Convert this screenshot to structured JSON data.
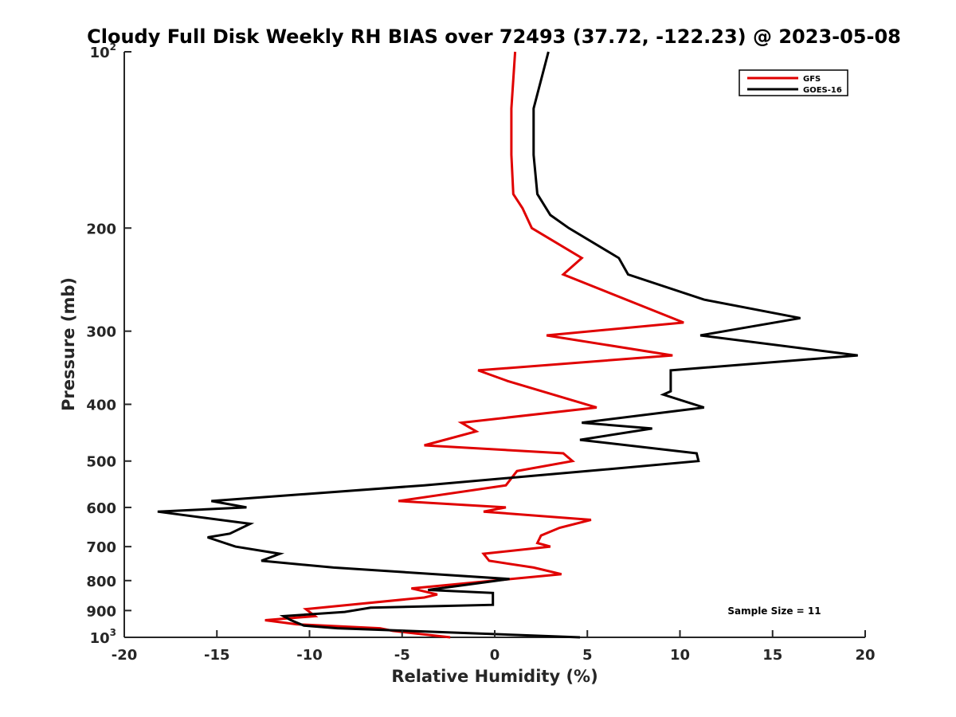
{
  "chart_data": {
    "type": "line",
    "title": "Cloudy Full Disk Weekly RH BIAS over 72493 (37.72, -122.23) @ 2023-05-08",
    "xlabel": "Relative Humidity (%)",
    "ylabel": "Pressure (mb)",
    "xlim": [
      -20,
      20
    ],
    "ylim": [
      100,
      1000
    ],
    "y_scale": "log",
    "y_reversed": true,
    "x_ticks": [
      "-20",
      "-15",
      "-10",
      "-5",
      "0",
      "5",
      "10",
      "15",
      "20"
    ],
    "y_ticks": [
      {
        "value": 100,
        "base": "10",
        "exp": "2"
      },
      {
        "value": 200,
        "label": "200"
      },
      {
        "value": 300,
        "label": "300"
      },
      {
        "value": 400,
        "label": "400"
      },
      {
        "value": 500,
        "label": "500"
      },
      {
        "value": 600,
        "label": "600"
      },
      {
        "value": 700,
        "label": "700"
      },
      {
        "value": 800,
        "label": "800"
      },
      {
        "value": 900,
        "label": "900"
      },
      {
        "value": 1000,
        "base": "10",
        "exp": "3"
      }
    ],
    "legend_position": "top-right",
    "annotation": "Sample Size = 11",
    "grid": false,
    "series": [
      {
        "name": "GFS",
        "color": "#e00000",
        "points": [
          [
            1.1,
            100
          ],
          [
            0.9,
            125
          ],
          [
            0.9,
            150
          ],
          [
            1.0,
            175
          ],
          [
            1.5,
            185
          ],
          [
            2.0,
            200
          ],
          [
            4.7,
            225
          ],
          [
            3.7,
            240
          ],
          [
            10.2,
            290
          ],
          [
            2.8,
            305
          ],
          [
            9.6,
            330
          ],
          [
            -0.9,
            350
          ],
          [
            0.7,
            365
          ],
          [
            5.5,
            405
          ],
          [
            -1.8,
            430
          ],
          [
            -1.0,
            445
          ],
          [
            -3.8,
            470
          ],
          [
            3.7,
            485
          ],
          [
            4.2,
            500
          ],
          [
            1.2,
            520
          ],
          [
            0.6,
            550
          ],
          [
            -5.2,
            585
          ],
          [
            0.6,
            600
          ],
          [
            -0.6,
            610
          ],
          [
            5.2,
            630
          ],
          [
            3.5,
            650
          ],
          [
            2.5,
            670
          ],
          [
            2.3,
            690
          ],
          [
            3.0,
            700
          ],
          [
            -0.6,
            720
          ],
          [
            -0.3,
            740
          ],
          [
            2.1,
            760
          ],
          [
            3.6,
            780
          ],
          [
            -4.5,
            825
          ],
          [
            -3.1,
            845
          ],
          [
            -3.8,
            855
          ],
          [
            -10.2,
            895
          ],
          [
            -9.7,
            920
          ],
          [
            -12.4,
            935
          ],
          [
            -10.7,
            950
          ],
          [
            -6.2,
            965
          ],
          [
            -5.5,
            975
          ],
          [
            -2.4,
            1000
          ]
        ]
      },
      {
        "name": "GOES-16",
        "color": "#000000",
        "points": [
          [
            2.9,
            100
          ],
          [
            2.1,
            125
          ],
          [
            2.1,
            150
          ],
          [
            2.3,
            175
          ],
          [
            3.0,
            190
          ],
          [
            4.0,
            200
          ],
          [
            6.7,
            225
          ],
          [
            7.2,
            240
          ],
          [
            11.3,
            265
          ],
          [
            16.5,
            285
          ],
          [
            11.1,
            305
          ],
          [
            19.6,
            330
          ],
          [
            9.5,
            350
          ],
          [
            9.5,
            380
          ],
          [
            9.1,
            385
          ],
          [
            11.3,
            405
          ],
          [
            4.7,
            430
          ],
          [
            8.5,
            440
          ],
          [
            4.6,
            460
          ],
          [
            10.9,
            485
          ],
          [
            11.0,
            500
          ],
          [
            5.0,
            520
          ],
          [
            -3.8,
            550
          ],
          [
            -15.3,
            585
          ],
          [
            -13.4,
            600
          ],
          [
            -18.2,
            610
          ],
          [
            -13.2,
            640
          ],
          [
            -14.3,
            665
          ],
          [
            -15.5,
            675
          ],
          [
            -14.0,
            700
          ],
          [
            -11.6,
            720
          ],
          [
            -12.6,
            740
          ],
          [
            -8.7,
            760
          ],
          [
            -3.2,
            780
          ],
          [
            0.8,
            795
          ],
          [
            -3.6,
            830
          ],
          [
            -0.1,
            840
          ],
          [
            -0.1,
            880
          ],
          [
            -6.7,
            890
          ],
          [
            -8.1,
            905
          ],
          [
            -11.4,
            920
          ],
          [
            -11.0,
            935
          ],
          [
            -10.3,
            955
          ],
          [
            -8.5,
            965
          ],
          [
            4.6,
            1000
          ]
        ]
      }
    ]
  }
}
